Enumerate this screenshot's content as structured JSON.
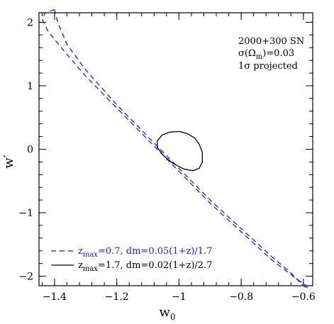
{
  "chart_data": {
    "type": "line",
    "xlabel_main": "w",
    "xlabel_sub": "0",
    "ylabel": "w′",
    "xlim": [
      -1.45,
      -0.57
    ],
    "ylim": [
      -2.15,
      2.15
    ],
    "x_ticks": [
      -1.4,
      -1.2,
      -1,
      -0.8,
      -0.6
    ],
    "x_tick_labels": [
      "−1.4",
      "−1.2",
      "−1",
      "−0.8",
      "−0.6"
    ],
    "y_ticks": [
      -2,
      -1,
      0,
      1,
      2
    ],
    "y_tick_labels": [
      "−2",
      "−1",
      "0",
      "1",
      "2"
    ],
    "grid": false,
    "annotation_lines": [
      "2000+300 SN",
      "σ(Ω",
      "m",
      ")=0.03",
      "1σ projected"
    ],
    "series": [
      {
        "legend_prefix": "z",
        "legend_sub": "max",
        "legend_rest": "=0.7, dm=0.05(1+z)/1.7",
        "color": "#1a1aff",
        "dashed": true,
        "points": [
          [
            -1.4,
            2.2
          ],
          [
            -1.43,
            2.15
          ],
          [
            -1.44,
            2.05
          ],
          [
            -1.42,
            1.85
          ],
          [
            -1.37,
            1.55
          ],
          [
            -1.3,
            1.15
          ],
          [
            -1.2,
            0.65
          ],
          [
            -1.1,
            0.15
          ],
          [
            -1.0,
            -0.35
          ],
          [
            -0.9,
            -0.85
          ],
          [
            -0.8,
            -1.3
          ],
          [
            -0.7,
            -1.75
          ],
          [
            -0.62,
            -2.05
          ],
          [
            -0.59,
            -2.15
          ],
          [
            -0.585,
            -2.2
          ],
          [
            -0.6,
            -2.15
          ],
          [
            -0.64,
            -1.95
          ],
          [
            -0.7,
            -1.7
          ],
          [
            -0.8,
            -1.25
          ],
          [
            -0.9,
            -0.8
          ],
          [
            -1.0,
            -0.3
          ],
          [
            -1.1,
            0.2
          ],
          [
            -1.2,
            0.7
          ],
          [
            -1.3,
            1.25
          ],
          [
            -1.36,
            1.65
          ],
          [
            -1.39,
            2.0
          ],
          [
            -1.4,
            2.2
          ]
        ]
      },
      {
        "legend_prefix": "z",
        "legend_sub": "max",
        "legend_rest": "=1.7, dm=0.02(1+z)/2.7",
        "color": "#000000",
        "dashed": false,
        "points": [
          [
            -1.0,
            0.28
          ],
          [
            -1.03,
            0.27
          ],
          [
            -1.055,
            0.22
          ],
          [
            -1.07,
            0.13
          ],
          [
            -1.07,
            0.03
          ],
          [
            -1.05,
            -0.1
          ],
          [
            -1.02,
            -0.22
          ],
          [
            -0.985,
            -0.31
          ],
          [
            -0.955,
            -0.34
          ],
          [
            -0.935,
            -0.3
          ],
          [
            -0.925,
            -0.2
          ],
          [
            -0.925,
            -0.05
          ],
          [
            -0.935,
            0.08
          ],
          [
            -0.95,
            0.18
          ],
          [
            -0.975,
            0.25
          ],
          [
            -1.0,
            0.28
          ]
        ]
      }
    ]
  }
}
